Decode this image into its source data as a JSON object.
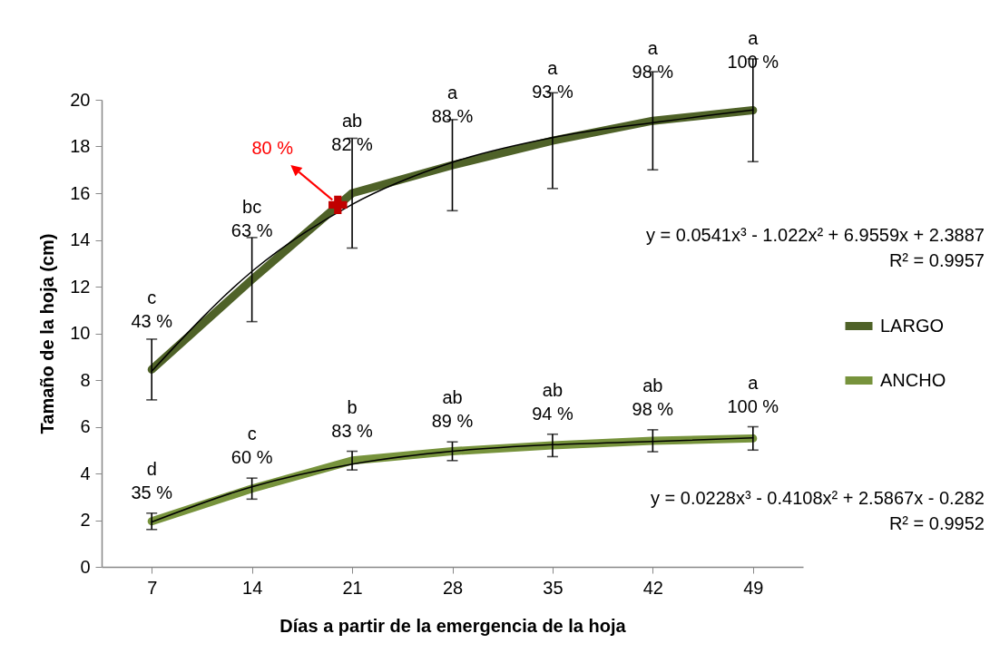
{
  "chart_data": {
    "type": "line",
    "xlabel": "Días a partir de la emergencia de la hoja",
    "ylabel": "Tamaño de la hoja (cm)",
    "x": [
      7,
      14,
      21,
      28,
      35,
      42,
      49
    ],
    "xlim": [
      3.5,
      52.5
    ],
    "xticks": [
      7,
      14,
      21,
      28,
      35,
      42,
      49
    ],
    "ylim": [
      0,
      20
    ],
    "yticks": [
      0,
      2,
      4,
      6,
      8,
      10,
      12,
      14,
      16,
      18,
      20
    ],
    "legend": "right",
    "series": [
      {
        "name": "LARGO",
        "color": "#4f6228",
        "values": [
          8.45,
          12.3,
          16.0,
          17.2,
          18.25,
          19.1,
          19.55
        ],
        "errors": [
          1.3,
          1.8,
          2.35,
          1.95,
          2.05,
          2.1,
          2.2
        ],
        "value_labels": [
          "c\n43 %",
          "bc\n63 %",
          "ab\n82 %",
          "a\n88 %",
          "a\n93 %",
          "a\n98 %",
          "a\n100 %"
        ]
      },
      {
        "name": "ANCHO",
        "color": "#77933c",
        "values": [
          1.95,
          3.35,
          4.55,
          4.95,
          5.2,
          5.4,
          5.5
        ],
        "errors": [
          0.35,
          0.45,
          0.4,
          0.4,
          0.48,
          0.47,
          0.5
        ],
        "value_labels": [
          "d\n35 %",
          "c\n60 %",
          "b\n83 %",
          "ab\n89 %",
          "ab\n94 %",
          "ab\n98 %",
          "a\n100 %"
        ]
      },
      {
        "type": "line",
        "color": "#000000",
        "values": [
          8.38,
          12.65,
          15.52,
          17.32,
          18.38,
          19.02,
          19.56
        ]
      },
      {
        "type": "line",
        "color": "#000000",
        "values": [
          1.92,
          3.43,
          4.4,
          4.95,
          5.23,
          5.37,
          5.52
        ]
      },
      {
        "type": "scatter",
        "color": "#c00000",
        "x": [
          20
        ],
        "values": [
          15.5
        ],
        "marker": "cross"
      }
    ],
    "annotations": [
      {
        "text": "80 %",
        "x": 20,
        "y": 15.5
      },
      "y = 0.0541x³ - 1.022x² + 6.9559x + 2.3887\nR² = 0.9957",
      "y = 0.0228x³ - 0.4108x² + 2.5867x - 0.282\nR² = 0.9952"
    ]
  }
}
